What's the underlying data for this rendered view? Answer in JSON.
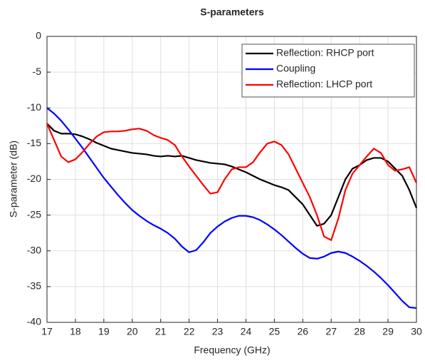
{
  "chart_data": {
    "type": "line",
    "title": "S-parameters",
    "xlabel": "Frequency (GHz)",
    "ylabel": "S-parameter (dB)",
    "x": [
      17,
      17.25,
      17.5,
      17.75,
      18,
      18.25,
      18.5,
      18.75,
      19,
      19.25,
      19.5,
      19.75,
      20,
      20.25,
      20.5,
      20.75,
      21,
      21.25,
      21.5,
      21.75,
      22,
      22.25,
      22.5,
      22.75,
      23,
      23.25,
      23.5,
      23.75,
      24,
      24.25,
      24.5,
      24.75,
      25,
      25.25,
      25.5,
      25.75,
      26,
      26.25,
      26.5,
      26.75,
      27,
      27.25,
      27.5,
      27.75,
      28,
      28.25,
      28.5,
      28.75,
      29,
      29.25,
      29.5,
      29.75,
      30
    ],
    "series": [
      {
        "name": "Reflection: RHCP port",
        "color": "#000000",
        "values": [
          -12.2,
          -13.2,
          -13.6,
          -13.6,
          -13.7,
          -14.0,
          -14.4,
          -14.9,
          -15.3,
          -15.7,
          -15.9,
          -16.1,
          -16.3,
          -16.4,
          -16.5,
          -16.7,
          -16.8,
          -16.7,
          -16.8,
          -16.7,
          -17.0,
          -17.3,
          -17.5,
          -17.7,
          -17.8,
          -17.9,
          -18.2,
          -18.6,
          -19.0,
          -19.5,
          -20.0,
          -20.4,
          -20.8,
          -21.1,
          -21.5,
          -22.5,
          -23.5,
          -25.0,
          -26.5,
          -26.2,
          -25.0,
          -22.5,
          -20.0,
          -18.5,
          -18.0,
          -17.3,
          -17.0,
          -17.0,
          -17.5,
          -18.5,
          -19.5,
          -21.5,
          -24.0
        ]
      },
      {
        "name": "Coupling",
        "color": "#0000ff",
        "values": [
          -10,
          -10.8,
          -11.8,
          -13.0,
          -14.3,
          -15.6,
          -17.0,
          -18.4,
          -19.8,
          -21.0,
          -22.2,
          -23.3,
          -24.3,
          -25.1,
          -25.8,
          -26.4,
          -26.9,
          -27.5,
          -28.3,
          -29.4,
          -30.2,
          -29.9,
          -28.8,
          -27.5,
          -26.6,
          -25.9,
          -25.4,
          -25.1,
          -25.1,
          -25.3,
          -25.7,
          -26.3,
          -27.0,
          -27.8,
          -28.7,
          -29.6,
          -30.4,
          -31.0,
          -31.1,
          -30.8,
          -30.3,
          -30.1,
          -30.3,
          -30.8,
          -31.4,
          -32.1,
          -32.9,
          -33.8,
          -34.8,
          -35.9,
          -37.0,
          -37.9,
          -38.0
        ]
      },
      {
        "name": "Reflection: LHCP port",
        "color": "#ff0000",
        "values": [
          -12.2,
          -14.5,
          -16.8,
          -17.6,
          -17.2,
          -16.2,
          -15.0,
          -14.0,
          -13.4,
          -13.3,
          -13.3,
          -13.2,
          -13.0,
          -12.9,
          -13.2,
          -13.8,
          -14.2,
          -14.5,
          -15.2,
          -16.8,
          -18.2,
          -19.5,
          -20.8,
          -22.0,
          -21.8,
          -20.0,
          -18.6,
          -18.3,
          -18.3,
          -17.6,
          -16.2,
          -15.0,
          -14.7,
          -15.2,
          -16.5,
          -18.5,
          -20.5,
          -22.5,
          -25.0,
          -28.0,
          -28.5,
          -25.5,
          -21.5,
          -19.2,
          -18.0,
          -16.8,
          -15.7,
          -16.3,
          -18.0,
          -18.8,
          -18.6,
          -18.3,
          -20.5
        ]
      }
    ],
    "xlim": [
      17,
      30
    ],
    "xticks": [
      17,
      18,
      19,
      20,
      21,
      22,
      23,
      24,
      25,
      26,
      27,
      28,
      29,
      30
    ],
    "ylim": [
      -40,
      0
    ],
    "yticks": [
      0,
      -5,
      -10,
      -15,
      -20,
      -25,
      -30,
      -35,
      -40
    ],
    "grid": true,
    "legend": "north-east"
  }
}
